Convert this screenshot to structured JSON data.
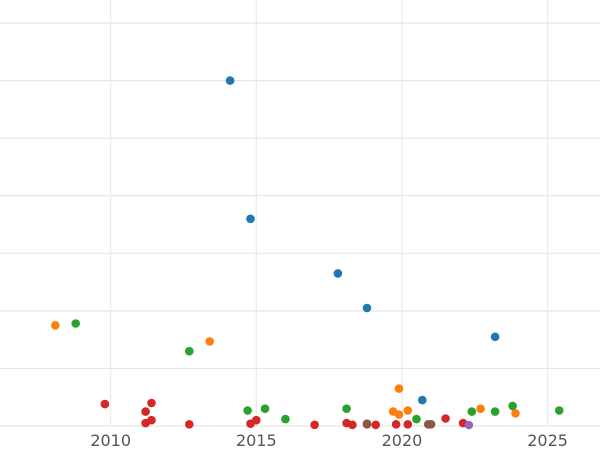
{
  "chart_data": {
    "type": "scatter",
    "title": "",
    "xlabel": "",
    "ylabel": "",
    "xlim": [
      2006.2,
      2026.8
    ],
    "ylim": [
      0,
      7.4
    ],
    "x_ticks": [
      2010,
      2015,
      2020,
      2025
    ],
    "x_tick_labels": [
      "2010",
      "2015",
      "2020",
      "2025"
    ],
    "y_gridlines": [
      0,
      1,
      2,
      3,
      4,
      5,
      6,
      7
    ],
    "grid": true,
    "legend": "none",
    "series": [
      {
        "color": "#1f77b4",
        "points": [
          [
            2014.1,
            6.0
          ],
          [
            2014.8,
            3.6
          ],
          [
            2017.8,
            2.65
          ],
          [
            2018.8,
            2.05
          ],
          [
            2023.2,
            1.55
          ],
          [
            2020.7,
            0.45
          ]
        ]
      },
      {
        "color": "#ff7f0e",
        "points": [
          [
            2008.1,
            1.75
          ],
          [
            2013.4,
            1.47
          ],
          [
            2019.9,
            0.65
          ],
          [
            2019.7,
            0.25
          ],
          [
            2020.2,
            0.27
          ],
          [
            2019.9,
            0.2
          ],
          [
            2022.7,
            0.3
          ],
          [
            2023.9,
            0.22
          ]
        ]
      },
      {
        "color": "#2ca02c",
        "points": [
          [
            2008.8,
            1.78
          ],
          [
            2012.7,
            1.3
          ],
          [
            2014.7,
            0.27
          ],
          [
            2015.3,
            0.3
          ],
          [
            2016.0,
            0.12
          ],
          [
            2018.1,
            0.3
          ],
          [
            2020.5,
            0.12
          ],
          [
            2022.4,
            0.25
          ],
          [
            2023.2,
            0.25
          ],
          [
            2023.8,
            0.35
          ],
          [
            2025.4,
            0.27
          ]
        ]
      },
      {
        "color": "#d62728",
        "points": [
          [
            2009.8,
            0.38
          ],
          [
            2011.2,
            0.25
          ],
          [
            2011.4,
            0.4
          ],
          [
            2011.4,
            0.1
          ],
          [
            2011.2,
            0.05
          ],
          [
            2012.7,
            0.03
          ],
          [
            2014.8,
            0.04
          ],
          [
            2015.0,
            0.1
          ],
          [
            2017.0,
            0.02
          ],
          [
            2018.1,
            0.05
          ],
          [
            2018.3,
            0.02
          ],
          [
            2018.8,
            0.03
          ],
          [
            2019.1,
            0.02
          ],
          [
            2019.8,
            0.03
          ],
          [
            2020.2,
            0.03
          ],
          [
            2021.5,
            0.13
          ],
          [
            2022.1,
            0.05
          ]
        ]
      },
      {
        "color": "#8c564b",
        "points": [
          [
            2018.8,
            0.04
          ],
          [
            2020.9,
            0.03
          ],
          [
            2021.0,
            0.03
          ]
        ]
      },
      {
        "color": "#9467bd",
        "points": [
          [
            2022.3,
            0.0
          ]
        ]
      }
    ]
  }
}
